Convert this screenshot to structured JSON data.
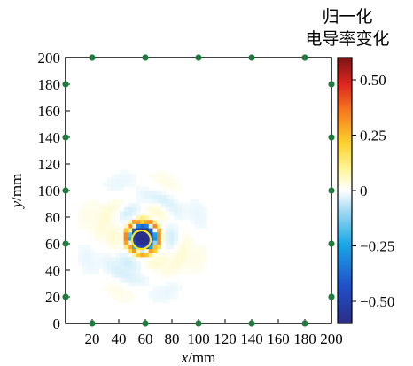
{
  "chart_data": {
    "type": "heatmap",
    "colorbar_title_line1": "归一化",
    "colorbar_title_line2": "电导率变化",
    "xlabel_var": "x",
    "xlabel_unit": "/mm",
    "ylabel_var": "y",
    "ylabel_unit": "/mm",
    "xlim": [
      0,
      200
    ],
    "ylim": [
      0,
      200
    ],
    "x_ticks": [
      20,
      40,
      60,
      80,
      100,
      120,
      140,
      160,
      180,
      200
    ],
    "y_ticks": [
      0,
      20,
      40,
      60,
      80,
      100,
      120,
      140,
      160,
      180,
      200
    ],
    "colorbar_range": [
      -0.6,
      0.6
    ],
    "colorbar_ticks": [
      {
        "value": 0.5,
        "label": "0.50"
      },
      {
        "value": 0.25,
        "label": "0.25"
      },
      {
        "value": 0,
        "label": "0"
      },
      {
        "value": -0.25,
        "label": "−0.25"
      },
      {
        "value": -0.5,
        "label": "−0.50"
      }
    ],
    "grid": false,
    "electrodes_color": "#1f7a3c",
    "electrodes": [
      {
        "x": 20,
        "y": 200
      },
      {
        "x": 60,
        "y": 200
      },
      {
        "x": 100,
        "y": 200
      },
      {
        "x": 140,
        "y": 200
      },
      {
        "x": 180,
        "y": 200
      },
      {
        "x": 20,
        "y": 0
      },
      {
        "x": 60,
        "y": 0
      },
      {
        "x": 100,
        "y": 0
      },
      {
        "x": 140,
        "y": 0
      },
      {
        "x": 180,
        "y": 0
      },
      {
        "x": 0,
        "y": 180
      },
      {
        "x": 0,
        "y": 140
      },
      {
        "x": 0,
        "y": 100
      },
      {
        "x": 0,
        "y": 60
      },
      {
        "x": 0,
        "y": 20
      },
      {
        "x": 200,
        "y": 180
      },
      {
        "x": 200,
        "y": 140
      },
      {
        "x": 200,
        "y": 100
      },
      {
        "x": 200,
        "y": 60
      },
      {
        "x": 200,
        "y": 20
      }
    ],
    "inclusion": {
      "center_x": 58,
      "center_y": 65,
      "peak_value": -0.6,
      "radius_mm": 12
    },
    "true_boundary": {
      "center_x": 57,
      "center_y": 63,
      "radius_mm": 7,
      "color": "#ffe81a"
    }
  }
}
